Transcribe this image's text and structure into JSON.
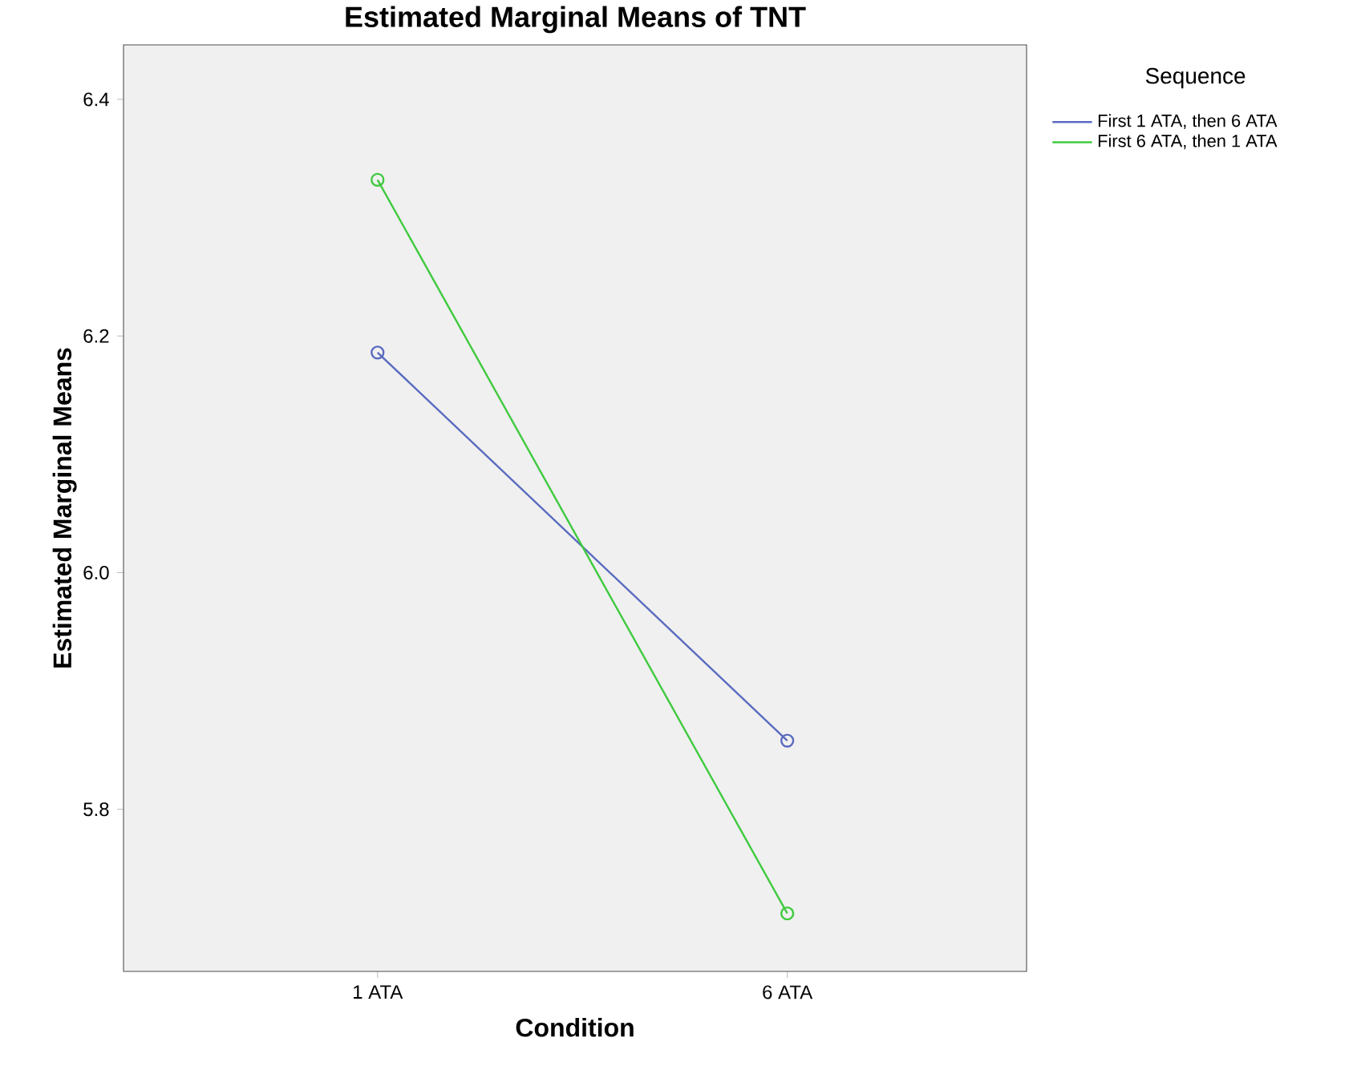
{
  "chart_data": {
    "type": "line",
    "title": "Estimated Marginal Means of TNT",
    "xlabel": "Condition",
    "ylabel": "Estimated Marginal Means",
    "legend_title": "Sequence",
    "categories": [
      "1 ATA",
      "6 ATA"
    ],
    "series": [
      {
        "name": "First 1 ATA, then 6 ATA",
        "color": "#5a6bbf",
        "values": [
          6.186,
          5.858
        ]
      },
      {
        "name": "First 6 ATA, then 1 ATA",
        "color": "#3fca3f",
        "values": [
          6.332,
          5.712
        ]
      }
    ],
    "ylim": [
      5.663,
      6.446
    ],
    "yticks": [
      5.8,
      {
        "value": 6.0,
        "label": "6.0"
      },
      6.2,
      6.4
    ],
    "legend": "top right",
    "marker": "circle",
    "grid": false
  }
}
